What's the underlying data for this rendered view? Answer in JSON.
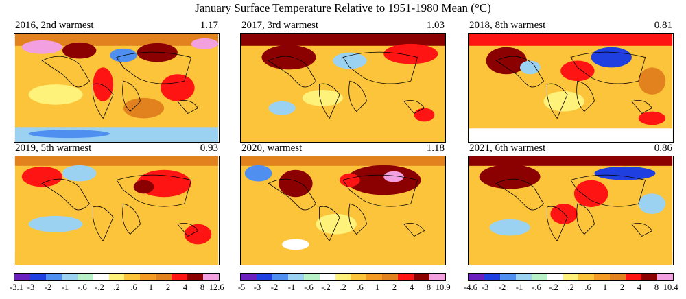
{
  "title": "January Surface Temperature Relative to 1951-1980 Mean (°C)",
  "panels": [
    {
      "label": "2016, 2nd warmest",
      "value": "1.17"
    },
    {
      "label": "2017, 3rd warmest",
      "value": "1.03"
    },
    {
      "label": "2018, 8th warmest",
      "value": "0.81"
    },
    {
      "label": "2019, 5th warmest",
      "value": "0.93"
    },
    {
      "label": "2020, warmest",
      "value": "1.18"
    },
    {
      "label": "2021, 6th warmest",
      "value": "0.86"
    }
  ],
  "colors": [
    "#6a1fbf",
    "#1f3fe0",
    "#4f8ff0",
    "#9bd2f2",
    "#b8f0c8",
    "#ffffff",
    "#fff27a",
    "#fbc43a",
    "#f39b25",
    "#e1821f",
    "#ff1414",
    "#8b0000",
    "#f2a0e0"
  ],
  "legends": [
    {
      "ticks": [
        "-3.1",
        "-3",
        "-2",
        "-1",
        "-.6",
        "-.2",
        ".2",
        ".6",
        "1",
        "2",
        "4",
        "8",
        "12.6"
      ]
    },
    {
      "ticks": [
        "-5",
        "-3",
        "-2",
        "-1",
        "-.6",
        "-.2",
        ".2",
        ".6",
        "1",
        "2",
        "4",
        "8",
        "10.9"
      ]
    },
    {
      "ticks": [
        "-4.6",
        "-3",
        "-2",
        "-1",
        "-.6",
        "-.2",
        ".2",
        ".6",
        "1",
        "2",
        "4",
        "8",
        "10.4"
      ]
    }
  ]
}
